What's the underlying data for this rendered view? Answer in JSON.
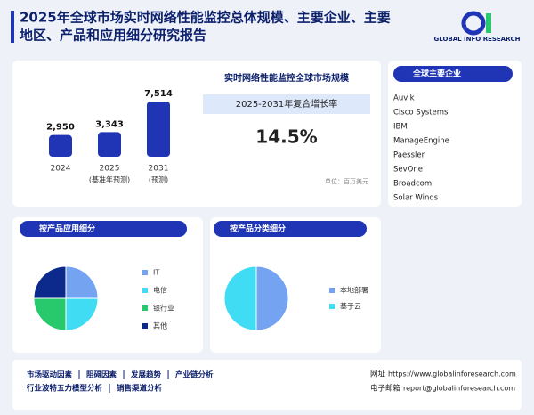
{
  "header": {
    "title_lines": [
      "2025年全球市场实时网络性能监控总体规模、主要企业、主要",
      "地区、产品和应用细分研究报告"
    ],
    "logo_text": "GLOBAL INFO RESEARCH"
  },
  "market": {
    "title": "实时网络性能监控全球市场规模",
    "cagr_label": "2025-2031年复合增长率",
    "cagr_value": "14.5%",
    "unit": "单位：百万美元"
  },
  "chart_data": [
    {
      "type": "bar",
      "categories": [
        "2024",
        "2025",
        "2031"
      ],
      "category_notes": [
        null,
        "(基准年预测)",
        "(预测)"
      ],
      "values": [
        2950,
        3343,
        7514
      ],
      "value_labels": [
        "2,950",
        "3,343",
        "7,514"
      ],
      "color": "#1f35b5"
    },
    {
      "type": "pie",
      "title": "按产品应用细分",
      "categories": [
        "IT",
        "电信",
        "银行业",
        "其他"
      ],
      "values": [
        25,
        25,
        25,
        25
      ],
      "colors": [
        "#74a3f2",
        "#3fdcf4",
        "#27c96c",
        "#0b2a8c"
      ]
    },
    {
      "type": "pie",
      "title": "按产品分类细分",
      "categories": [
        "本地部署",
        "基于云"
      ],
      "values": [
        50,
        50
      ],
      "colors": [
        "#74a3f2",
        "#3fdcf4"
      ]
    }
  ],
  "companies": {
    "title": "全球主要企业",
    "items": [
      "Auvik",
      "Cisco Systems",
      "IBM",
      "ManageEngine",
      "Paessler",
      "SevOne",
      "Broadcom",
      "Solar Winds"
    ]
  },
  "footer": {
    "links": [
      [
        "市场驱动因素",
        "阻碍因素",
        "发展趋势",
        "产业链分析"
      ],
      [
        "行业波特五力模型分析",
        "销售渠道分析"
      ]
    ],
    "website_label": "网址",
    "website": "https://www.globalinforesearch.com",
    "email_label": "电子邮箱",
    "email": "report@globalinforesearch.com"
  }
}
